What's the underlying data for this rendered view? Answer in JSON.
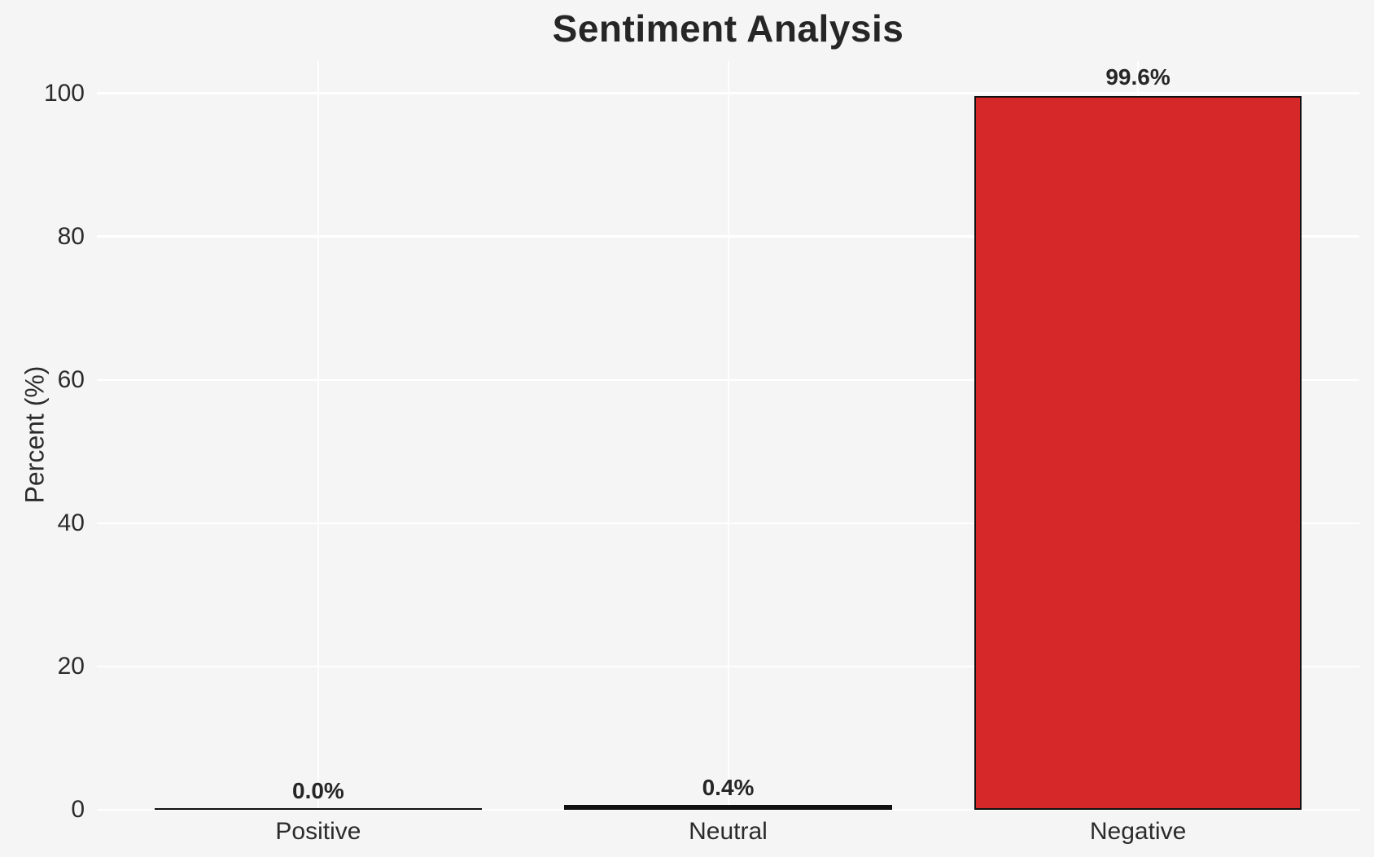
{
  "figure": {
    "background_color": "#f5f5f6",
    "text_color": "#2b2b2b"
  },
  "chart_data": {
    "type": "bar",
    "title": "Sentiment Analysis",
    "xlabel": "",
    "ylabel": "Percent (%)",
    "categories": [
      "Positive",
      "Neutral",
      "Negative"
    ],
    "values": [
      0.0,
      0.4,
      99.6
    ],
    "bar_labels": [
      "0.0%",
      "0.4%",
      "99.6%"
    ],
    "bar_fill_color": "#d62828",
    "bar_edge_color": "#111111",
    "bar_width": 0.8,
    "yticks": [
      0,
      20,
      40,
      60,
      80,
      100
    ],
    "ylim": [
      0,
      104.5
    ],
    "xlim": [
      -0.54,
      2.54
    ],
    "grid": true,
    "grid_color": "#ffffff",
    "legend": null
  }
}
